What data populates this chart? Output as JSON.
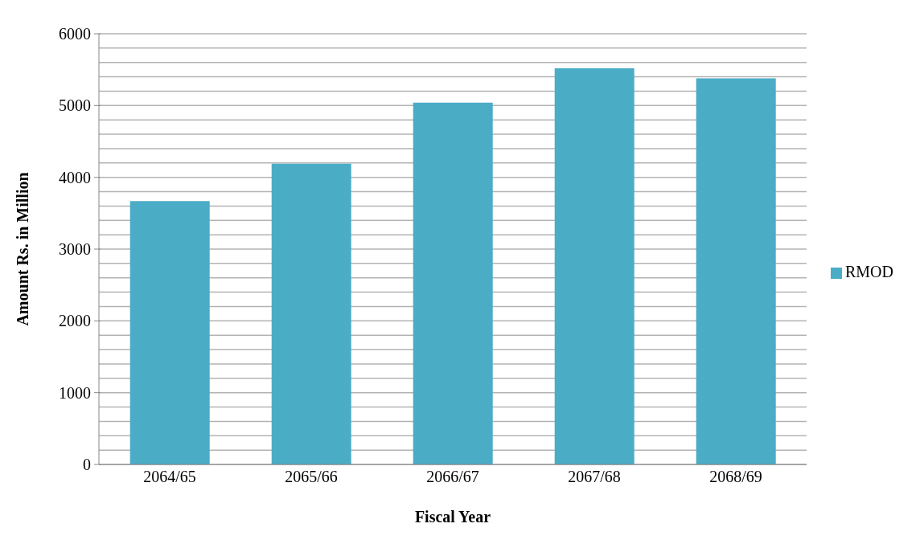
{
  "chart_data": {
    "type": "bar",
    "xlabel": "Fiscal Year",
    "ylabel": "Amount Rs. in Million",
    "categories": [
      "2064/65",
      "2065/66",
      "2066/67",
      "2067/68",
      "2068/69"
    ],
    "series": [
      {
        "name": "RMOD",
        "color": "#4bacc6",
        "values": [
          3670,
          4190,
          5040,
          5520,
          5380
        ]
      }
    ],
    "ylim": [
      0,
      6000
    ],
    "yticks": [
      0,
      {
        "value": 200,
        "label": null
      },
      {
        "value": 400,
        "label": null
      },
      {
        "value": 600,
        "label": null
      },
      {
        "value": 800,
        "label": null
      },
      1000,
      {
        "value": 1200,
        "label": null
      },
      {
        "value": 1400,
        "label": null
      },
      {
        "value": 1600,
        "label": null
      },
      {
        "value": 1800,
        "label": null
      },
      2000,
      {
        "value": 2200,
        "label": null
      },
      {
        "value": 2400,
        "label": null
      },
      {
        "value": 2600,
        "label": null
      },
      {
        "value": 2800,
        "label": null
      },
      3000,
      {
        "value": 3200,
        "label": null
      },
      {
        "value": 3400,
        "label": null
      },
      {
        "value": 3600,
        "label": null
      },
      {
        "value": 3800,
        "label": null
      },
      4000,
      {
        "value": 4200,
        "label": null
      },
      {
        "value": 4400,
        "label": null
      },
      {
        "value": 4600,
        "label": null
      },
      {
        "value": 4800,
        "label": null
      },
      5000,
      {
        "value": 5200,
        "label": null
      },
      {
        "value": 5400,
        "label": null
      },
      {
        "value": 5600,
        "label": null
      },
      {
        "value": 5800,
        "label": null
      },
      6000
    ],
    "grid": "y",
    "legend": "right"
  }
}
